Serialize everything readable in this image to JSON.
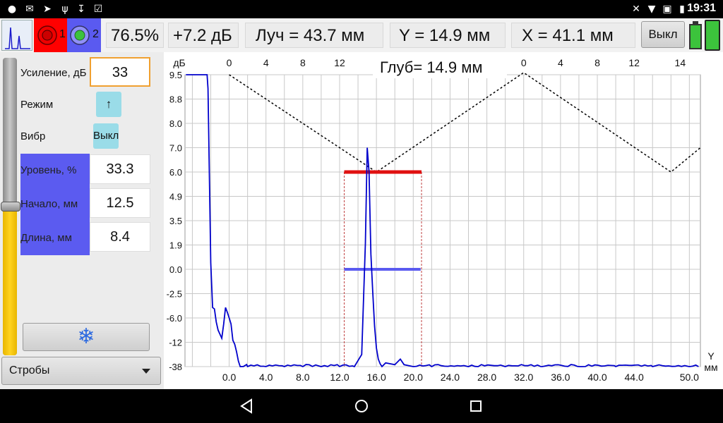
{
  "status_bar": {
    "time": "19:31",
    "left_icons": [
      "person-icon",
      "mail-icon",
      "rocket-icon",
      "usb-icon",
      "download-icon",
      "checkbox-icon"
    ],
    "right_icons": [
      "bluetooth-icon",
      "wifi-icon",
      "no-sim-icon",
      "battery-icon"
    ]
  },
  "toolbar": {
    "gate1_label": "1",
    "gate2_label": "2",
    "gain_percent": "76.5%",
    "delta_db": "+7.2 дБ",
    "beam": "Луч = 43.7 мм",
    "y_value": "Y = 14.9 мм",
    "x_value": "X = 41.1 мм",
    "off_button": "Выкл",
    "colors": {
      "gate1_bg": "#ff0000",
      "gate2_bg": "#5a5af0",
      "battery": "#3cc33c"
    }
  },
  "left_panel": {
    "gain_label": "Усиление, дБ",
    "gain_value": "33",
    "mode_label": "Режим",
    "mode_value": "↑",
    "vibr_label": "Вибр",
    "vibr_value": "Выкл",
    "level_label": "Уровень, %",
    "level_value": "33.3",
    "start_label": "Начало, мм",
    "start_value": "12.5",
    "length_label": "Длина, мм",
    "length_value": "8.4",
    "freeze_icon": "snowflake-icon",
    "gates_dropdown": "Стробы",
    "gain_slider_fraction": 0.5
  },
  "plot": {
    "depth_readout": "Глуб= 14.9 мм",
    "db_axis_label": "дБ",
    "x_axis_label_top": "Y",
    "x_axis_label_bottom": "мм",
    "y_ticks": [
      "9.5",
      "8.8",
      "8.0",
      "7.0",
      "6.0",
      "4.9",
      "3.5",
      "1.9",
      "0.0",
      "-2.5",
      "-6.0",
      "-12",
      "-38"
    ],
    "x_ticks": [
      "0.0",
      "4.0",
      "8.0",
      "12.0",
      "16.0",
      "20.0",
      "24.0",
      "28.0",
      "32.0",
      "36.0",
      "40.0",
      "44.0",
      "50.0"
    ],
    "top_ticks": [
      "0",
      "4",
      "8",
      "12",
      "0",
      "4",
      "8",
      "12",
      "14"
    ],
    "colors": {
      "signal": "#0000cc",
      "gate1": "#e01010",
      "gate2": "#5a5af0",
      "dac": "#000000",
      "grid": "#c8c8c8"
    }
  },
  "chart_data": {
    "type": "line",
    "xlabel": "Y мм",
    "ylabel": "дБ",
    "xlim": [
      -4.8,
      51.2
    ],
    "ylim": [
      -38,
      9.5
    ],
    "y_ticks": [
      9.5,
      8.8,
      8.0,
      7.0,
      6.0,
      4.9,
      3.5,
      1.9,
      0.0,
      -2.5,
      -6.0,
      -12,
      -38
    ],
    "series": [
      {
        "values_mm": [
          -4.7,
          -2.4,
          -2.3,
          -2.0,
          -1.8,
          -1.6,
          -1.4,
          -1.2,
          -1.0,
          -0.8,
          -0.6,
          -0.4,
          -0.2,
          0.0,
          0.2,
          0.4,
          0.6,
          0.8,
          1.0,
          1.2,
          2.0,
          4.0,
          6.0,
          8.0,
          10.0,
          12.0,
          13.6,
          14.4,
          14.8,
          15.0,
          15.2,
          15.4,
          15.6,
          15.8,
          16.0,
          16.2,
          16.4,
          16.6,
          17.0,
          18.0,
          18.6,
          19.0,
          20.0,
          22.0,
          26.0,
          30.0,
          34.0,
          38.0,
          42.0,
          46.0,
          50.0,
          51.0
        ],
        "values_db": [
          9.5,
          9.5,
          9.1,
          0.5,
          -4.5,
          -4.7,
          -7.0,
          -9.0,
          -10.0,
          -11.0,
          -7.5,
          -4.5,
          -5.2,
          -6.0,
          -7.5,
          -11.5,
          -14,
          -22,
          -32,
          -38,
          -38,
          -38,
          -38,
          -38,
          -38,
          -38,
          -38,
          -25,
          2,
          7.0,
          6.0,
          1.2,
          -2.3,
          -8,
          -18,
          -30,
          -35,
          -38,
          -34,
          -36,
          -30,
          -36,
          -38,
          -38,
          -38,
          -38,
          -38,
          -38,
          -38,
          -38,
          -38,
          -38
        ]
      }
    ],
    "gates": [
      {
        "name": "1",
        "level_db": 6.0,
        "start_mm": 12.5,
        "end_mm": 20.9
      },
      {
        "name": "2",
        "level_db": 0.0,
        "start_mm": 12.5,
        "end_mm": 20.8
      }
    ]
  }
}
